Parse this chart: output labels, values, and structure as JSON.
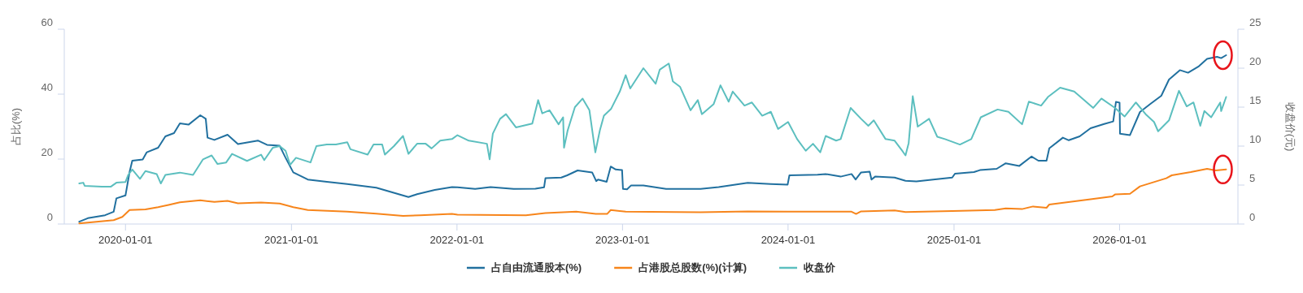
{
  "chart_data": {
    "type": "line",
    "ylabel": "占比(%)",
    "y2label": "收盘价(元)",
    "xlim": [
      "2019-08-19",
      "2026-09-19"
    ],
    "xticks": [
      "2020-01-01",
      "2021-01-01",
      "2022-01-01",
      "2023-01-01",
      "2024-01-01",
      "2025-01-01",
      "2026-01-01"
    ],
    "ylim": [
      0,
      60
    ],
    "yticks": [
      0,
      20,
      40,
      60
    ],
    "y2lim": [
      0,
      25
    ],
    "y2ticks": [
      0,
      5,
      10,
      15,
      20,
      25
    ],
    "legend": "bottom",
    "line_style": "solid",
    "series": [
      {
        "name": "占自由流通股本(%)",
        "color": "#21709f",
        "x": [
          "2019-09-21",
          "2019-10-10",
          "2019-11-17",
          "2019-12-06",
          "2019-12-12",
          "2020-01-01",
          "2020-01-10",
          "2020-01-16",
          "2020-02-08",
          "2020-02-17",
          "2020-03-13",
          "2020-03-29",
          "2020-04-17",
          "2020-04-30",
          "2020-05-19",
          "2020-06-14",
          "2020-06-26",
          "2020-06-30",
          "2020-07-15",
          "2020-08-13",
          "2020-09-05",
          "2020-10-19",
          "2020-11-08",
          "2020-12-06",
          "2020-12-19",
          "2021-01-05",
          "2021-02-06",
          "2021-03-20",
          "2021-05-04",
          "2021-07-07",
          "2021-09-16",
          "2021-10-05",
          "2021-11-13",
          "2021-12-21",
          "2022-01-02",
          "2022-02-10",
          "2022-03-16",
          "2022-05-06",
          "2022-06-23",
          "2022-07-12",
          "2022-07-15",
          "2022-08-19",
          "2022-09-01",
          "2022-09-24",
          "2022-10-26",
          "2022-11-04",
          "2022-11-08",
          "2022-11-27",
          "2022-12-06",
          "2022-12-17",
          "2022-12-31",
          "2023-01-02",
          "2023-01-11",
          "2023-01-20",
          "2023-02-16",
          "2023-04-07",
          "2023-06-22",
          "2023-08-01",
          "2023-10-04",
          "2023-11-24",
          "2023-12-31",
          "2024-01-04",
          "2024-03-06",
          "2024-03-24",
          "2024-04-26",
          "2024-05-20",
          "2024-05-29",
          "2024-06-10",
          "2024-06-29",
          "2024-07-03",
          "2024-07-11",
          "2024-08-23",
          "2024-09-16",
          "2024-10-10",
          "2024-11-16",
          "2024-12-28",
          "2025-01-03",
          "2025-02-14",
          "2025-02-27",
          "2025-04-05",
          "2025-04-25",
          "2025-05-25",
          "2025-06-21",
          "2025-07-06",
          "2025-07-24",
          "2025-07-30",
          "2025-08-29",
          "2025-09-11",
          "2025-10-05",
          "2025-10-29",
          "2025-11-28",
          "2025-12-18",
          "2025-12-24",
          "2026-01-01",
          "2026-01-02",
          "2026-01-24",
          "2026-02-15",
          "2026-03-10",
          "2026-04-03",
          "2026-04-20",
          "2026-05-14",
          "2026-06-01",
          "2026-06-25",
          "2026-07-13",
          "2026-08-04",
          "2026-08-13",
          "2026-08-24"
        ],
        "values": [
          0.7,
          1.8,
          2.7,
          3.8,
          7.9,
          8.8,
          16,
          19.5,
          19.9,
          22.1,
          23.5,
          27,
          28,
          31,
          30.6,
          33.5,
          32.4,
          26.6,
          25.9,
          27.5,
          24.6,
          25.7,
          24.4,
          24.1,
          20.4,
          15.9,
          13.7,
          13,
          12.3,
          11.2,
          8.3,
          9.2,
          10.5,
          11.4,
          11.3,
          10.8,
          11.4,
          10.8,
          10.9,
          11.3,
          14.1,
          14.3,
          15,
          16.5,
          15.9,
          13.2,
          13.7,
          13,
          17.7,
          16.8,
          16.6,
          10.8,
          10.7,
          11.9,
          11.9,
          10.8,
          10.8,
          11.4,
          12.7,
          12.3,
          12.1,
          15,
          15.2,
          15.4,
          14.6,
          15.4,
          13.7,
          15.9,
          16.1,
          13.7,
          14.6,
          14.3,
          13.3,
          13.1,
          13.7,
          14.3,
          15.5,
          16,
          16.6,
          17,
          18.7,
          17.9,
          20.8,
          19.5,
          19.5,
          23.3,
          26.6,
          25.8,
          27,
          29.5,
          30.8,
          31.6,
          37.6,
          37.4,
          27.8,
          27.4,
          34.5,
          37,
          39.5,
          44.5,
          47.4,
          46.6,
          48.6,
          50.9,
          51.5,
          51.1,
          52
        ]
      },
      {
        "name": "占港股总股数(%)(计算)",
        "color": "#f7851b",
        "x": [
          "2019-09-21",
          "2019-10-29",
          "2019-12-06",
          "2019-12-25",
          "2020-01-10",
          "2020-02-14",
          "2020-03-13",
          "2020-04-05",
          "2020-04-30",
          "2020-06-14",
          "2020-07-15",
          "2020-08-13",
          "2020-09-05",
          "2020-10-26",
          "2020-12-06",
          "2021-01-05",
          "2021-02-06",
          "2021-05-04",
          "2021-07-07",
          "2021-09-04",
          "2021-10-12",
          "2021-12-21",
          "2022-01-02",
          "2022-06-02",
          "2022-07-15",
          "2022-09-21",
          "2022-11-03",
          "2022-11-28",
          "2022-12-06",
          "2023-01-08",
          "2023-06-22",
          "2023-10-04",
          "2024-01-01",
          "2024-05-20",
          "2024-05-30",
          "2024-06-10",
          "2024-08-23",
          "2024-09-16",
          "2024-12-28",
          "2025-04-01",
          "2025-04-25",
          "2025-05-31",
          "2025-06-24",
          "2025-07-24",
          "2025-07-30",
          "2025-10-29",
          "2025-12-16",
          "2025-12-22",
          "2026-01-24",
          "2026-02-15",
          "2026-04-14",
          "2026-04-26",
          "2026-06-07",
          "2026-07-13",
          "2026-08-01",
          "2026-08-24"
        ],
        "values": [
          0.2,
          0.7,
          1.2,
          2.2,
          4.3,
          4.5,
          5.2,
          5.9,
          6.7,
          7.3,
          6.8,
          7.1,
          6.4,
          6.6,
          6.3,
          5.2,
          4.3,
          3.8,
          3.2,
          2.5,
          2.7,
          3.1,
          2.9,
          2.7,
          3.4,
          3.8,
          3.1,
          3.1,
          4.3,
          3.8,
          3.6,
          3.9,
          3.8,
          3.8,
          3.1,
          3.9,
          4.2,
          3.7,
          4,
          4.3,
          4.8,
          4.6,
          5.4,
          5,
          6,
          7.6,
          8.5,
          9.1,
          9.3,
          11.6,
          14.1,
          15,
          16,
          17,
          16.5,
          16.8
        ]
      },
      {
        "name": "收盘价",
        "color": "#5cbfbf",
        "axis": "y2",
        "x": [
          "2019-09-21",
          "2019-09-30",
          "2019-10-03",
          "2019-11-10",
          "2019-11-30",
          "2019-12-12",
          "2020-01-01",
          "2020-01-07",
          "2020-01-16",
          "2020-02-02",
          "2020-02-14",
          "2020-03-10",
          "2020-03-19",
          "2020-03-29",
          "2020-04-30",
          "2020-05-29",
          "2020-06-20",
          "2020-07-09",
          "2020-07-22",
          "2020-08-10",
          "2020-08-23",
          "2020-09-25",
          "2020-10-26",
          "2020-11-02",
          "2020-11-21",
          "2020-12-06",
          "2020-12-19",
          "2020-12-29",
          "2021-01-11",
          "2021-02-12",
          "2021-02-25",
          "2021-03-20",
          "2021-04-09",
          "2021-05-04",
          "2021-05-11",
          "2021-06-18",
          "2021-07-01",
          "2021-07-20",
          "2021-07-26",
          "2021-08-15",
          "2021-09-04",
          "2021-09-16",
          "2021-10-05",
          "2021-10-24",
          "2021-11-06",
          "2021-11-25",
          "2021-12-21",
          "2022-01-02",
          "2022-01-27",
          "2022-03-08",
          "2022-03-14",
          "2022-03-21",
          "2022-04-06",
          "2022-04-19",
          "2022-05-11",
          "2022-06-16",
          "2022-06-29",
          "2022-07-08",
          "2022-07-24",
          "2022-08-13",
          "2022-08-23",
          "2022-08-25",
          "2022-09-02",
          "2022-09-18",
          "2022-10-05",
          "2022-10-20",
          "2022-11-02",
          "2022-11-12",
          "2022-11-21",
          "2022-12-07",
          "2022-12-26",
          "2023-01-08",
          "2023-01-18",
          "2023-02-16",
          "2023-03-15",
          "2023-03-24",
          "2023-04-13",
          "2023-04-22",
          "2023-05-08",
          "2023-05-31",
          "2023-06-16",
          "2023-06-25",
          "2023-07-21",
          "2023-08-05",
          "2023-08-23",
          "2023-09-01",
          "2023-09-27",
          "2023-10-13",
          "2023-11-05",
          "2023-11-24",
          "2023-12-10",
          "2024-01-01",
          "2024-01-21",
          "2024-02-09",
          "2024-02-25",
          "2024-03-12",
          "2024-03-24",
          "2024-04-16",
          "2024-04-26",
          "2024-05-18",
          "2024-06-10",
          "2024-06-26",
          "2024-07-08",
          "2024-08-03",
          "2024-08-23",
          "2024-09-10",
          "2024-09-16",
          "2024-09-23",
          "2024-10-02",
          "2024-10-13",
          "2024-11-07",
          "2024-11-25",
          "2024-12-12",
          "2025-01-14",
          "2025-02-08",
          "2025-03-01",
          "2025-04-07",
          "2025-05-01",
          "2025-05-31",
          "2025-06-15",
          "2025-07-12",
          "2025-07-27",
          "2025-08-23",
          "2025-09-23",
          "2025-11-04",
          "2025-11-22",
          "2025-12-22",
          "2026-01-12",
          "2026-02-06",
          "2026-03-01",
          "2026-03-18",
          "2026-03-27",
          "2026-04-20",
          "2026-05-12",
          "2026-05-29",
          "2026-06-13",
          "2026-06-28",
          "2026-07-07",
          "2026-07-22",
          "2026-08-11",
          "2026-08-13",
          "2026-08-24"
        ],
        "values": [
          5.2,
          5.3,
          4.9,
          4.8,
          4.8,
          5.3,
          5.4,
          6.3,
          7,
          5.8,
          6.8,
          6.4,
          5.2,
          6.3,
          6.6,
          6.3,
          8.3,
          8.8,
          7.7,
          7.9,
          9,
          8.1,
          8.9,
          8.2,
          9.8,
          10,
          9.4,
          7.6,
          8.5,
          7.9,
          10,
          10.2,
          10.2,
          10.5,
          9.6,
          8.9,
          10.2,
          10.2,
          8.9,
          10,
          11.3,
          9,
          10.3,
          10.3,
          9.7,
          10.7,
          10.9,
          11.4,
          10.7,
          10.3,
          8.3,
          11.6,
          13.5,
          14.1,
          12.4,
          12.9,
          15.9,
          14.2,
          14.6,
          12.8,
          13.7,
          9.8,
          12,
          15,
          16.1,
          14.6,
          9.2,
          12,
          13.9,
          14.8,
          17,
          19.1,
          17.4,
          20,
          18,
          19.8,
          20.6,
          18.3,
          17.6,
          14.6,
          15.9,
          14.1,
          15.4,
          17.8,
          15.7,
          17,
          15.2,
          15.6,
          13.9,
          14.4,
          12.2,
          13.1,
          10.9,
          9.4,
          10.3,
          9.2,
          11.3,
          10.7,
          10.9,
          14.9,
          13.5,
          12.6,
          13.3,
          10.9,
          10.7,
          9.3,
          8.8,
          10.4,
          16.4,
          12.5,
          13.5,
          11.2,
          10.9,
          10.2,
          10.9,
          13.7,
          14.7,
          14.4,
          12.8,
          15.7,
          15.2,
          16.3,
          17.5,
          17,
          14.9,
          16.1,
          14.9,
          13.8,
          15.6,
          14,
          13.1,
          11.9,
          13.3,
          17.1,
          15.1,
          15.6,
          12.6,
          14.5,
          13.7,
          15.6,
          14.5,
          16.3
        ]
      }
    ]
  }
}
